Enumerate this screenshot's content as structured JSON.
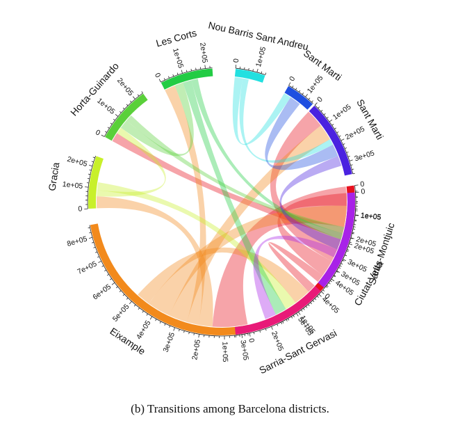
{
  "caption": "(b)  Transitions among Barcelona districts.",
  "chart_data": {
    "type": "chord",
    "title": "",
    "sectors": [
      {
        "name": "Ciutat Vella",
        "total": 570000,
        "color": "#e8101e",
        "ticks": [
          "0",
          "1e+05",
          "2e+05",
          "3e+05",
          "4e+05",
          "5e+05"
        ]
      },
      {
        "name": "Eixample",
        "total": 850000,
        "color": "#f28a1c",
        "ticks": [
          "0",
          "1e+05",
          "2e+05",
          "3e+05",
          "4e+05",
          "5e+05",
          "6e+05",
          "7e+05",
          "8e+05"
        ]
      },
      {
        "name": "Gracia",
        "total": 250000,
        "color": "#c8f02a",
        "ticks": [
          "0",
          "1e+05",
          "2e+05"
        ]
      },
      {
        "name": "Horta-Guinardo",
        "total": 240000,
        "color": "#5ad03a",
        "ticks": [
          "0",
          "1e+05",
          "2e+05"
        ]
      },
      {
        "name": "Les Corts",
        "total": 230000,
        "color": "#22cc44",
        "ticks": [
          "0",
          "1e+05",
          "2e+05"
        ]
      },
      {
        "name": "Nou Barris Sant Andreu",
        "total": 140000,
        "color": "#22e0e0",
        "ticks": [
          "0",
          "1e+05"
        ]
      },
      {
        "name": "Sant Marti",
        "total": 150000,
        "color": "#1f4fe0",
        "ticks": [
          "0",
          "1e+05"
        ]
      },
      {
        "name": "Sant Marti ",
        "total": 360000,
        "color": "#4a22e0",
        "ticks": [
          "0",
          "1e+05",
          "2e+05",
          "3e+05"
        ]
      },
      {
        "name": "Sants-Montjuic",
        "total": 450000,
        "color": "#a822e8",
        "ticks": [
          "0",
          "1e+05",
          "2e+05",
          "3e+05",
          "4e+05"
        ]
      },
      {
        "name": "Sarria-Sant Gervasi",
        "total": 320000,
        "color": "#e81a78",
        "ticks": [
          "0",
          "1e+05",
          "2e+05",
          "3e+05"
        ]
      }
    ],
    "links": [
      {
        "source": 0,
        "target": 1,
        "value": 150000
      },
      {
        "source": 0,
        "target": 3,
        "value": 40000
      },
      {
        "source": 0,
        "target": 7,
        "value": 90000
      },
      {
        "source": 0,
        "target": 8,
        "value": 60000
      },
      {
        "source": 0,
        "target": 9,
        "value": 30000
      },
      {
        "source": 1,
        "target": 2,
        "value": 60000
      },
      {
        "source": 1,
        "target": 4,
        "value": 50000
      },
      {
        "source": 1,
        "target": 7,
        "value": 80000
      },
      {
        "source": 1,
        "target": 8,
        "value": 100000
      },
      {
        "source": 1,
        "target": 9,
        "value": 60000
      },
      {
        "source": 2,
        "target": 3,
        "value": 30000
      },
      {
        "source": 2,
        "target": 9,
        "value": 40000
      },
      {
        "source": 3,
        "target": 4,
        "value": 40000
      },
      {
        "source": 3,
        "target": 8,
        "value": 30000
      },
      {
        "source": 4,
        "target": 9,
        "value": 40000
      },
      {
        "source": 4,
        "target": 8,
        "value": 30000
      },
      {
        "source": 5,
        "target": 6,
        "value": 40000
      },
      {
        "source": 5,
        "target": 7,
        "value": 30000
      },
      {
        "source": 6,
        "target": 7,
        "value": 60000
      },
      {
        "source": 7,
        "target": 8,
        "value": 50000
      },
      {
        "source": 8,
        "target": 9,
        "value": 40000
      }
    ]
  }
}
